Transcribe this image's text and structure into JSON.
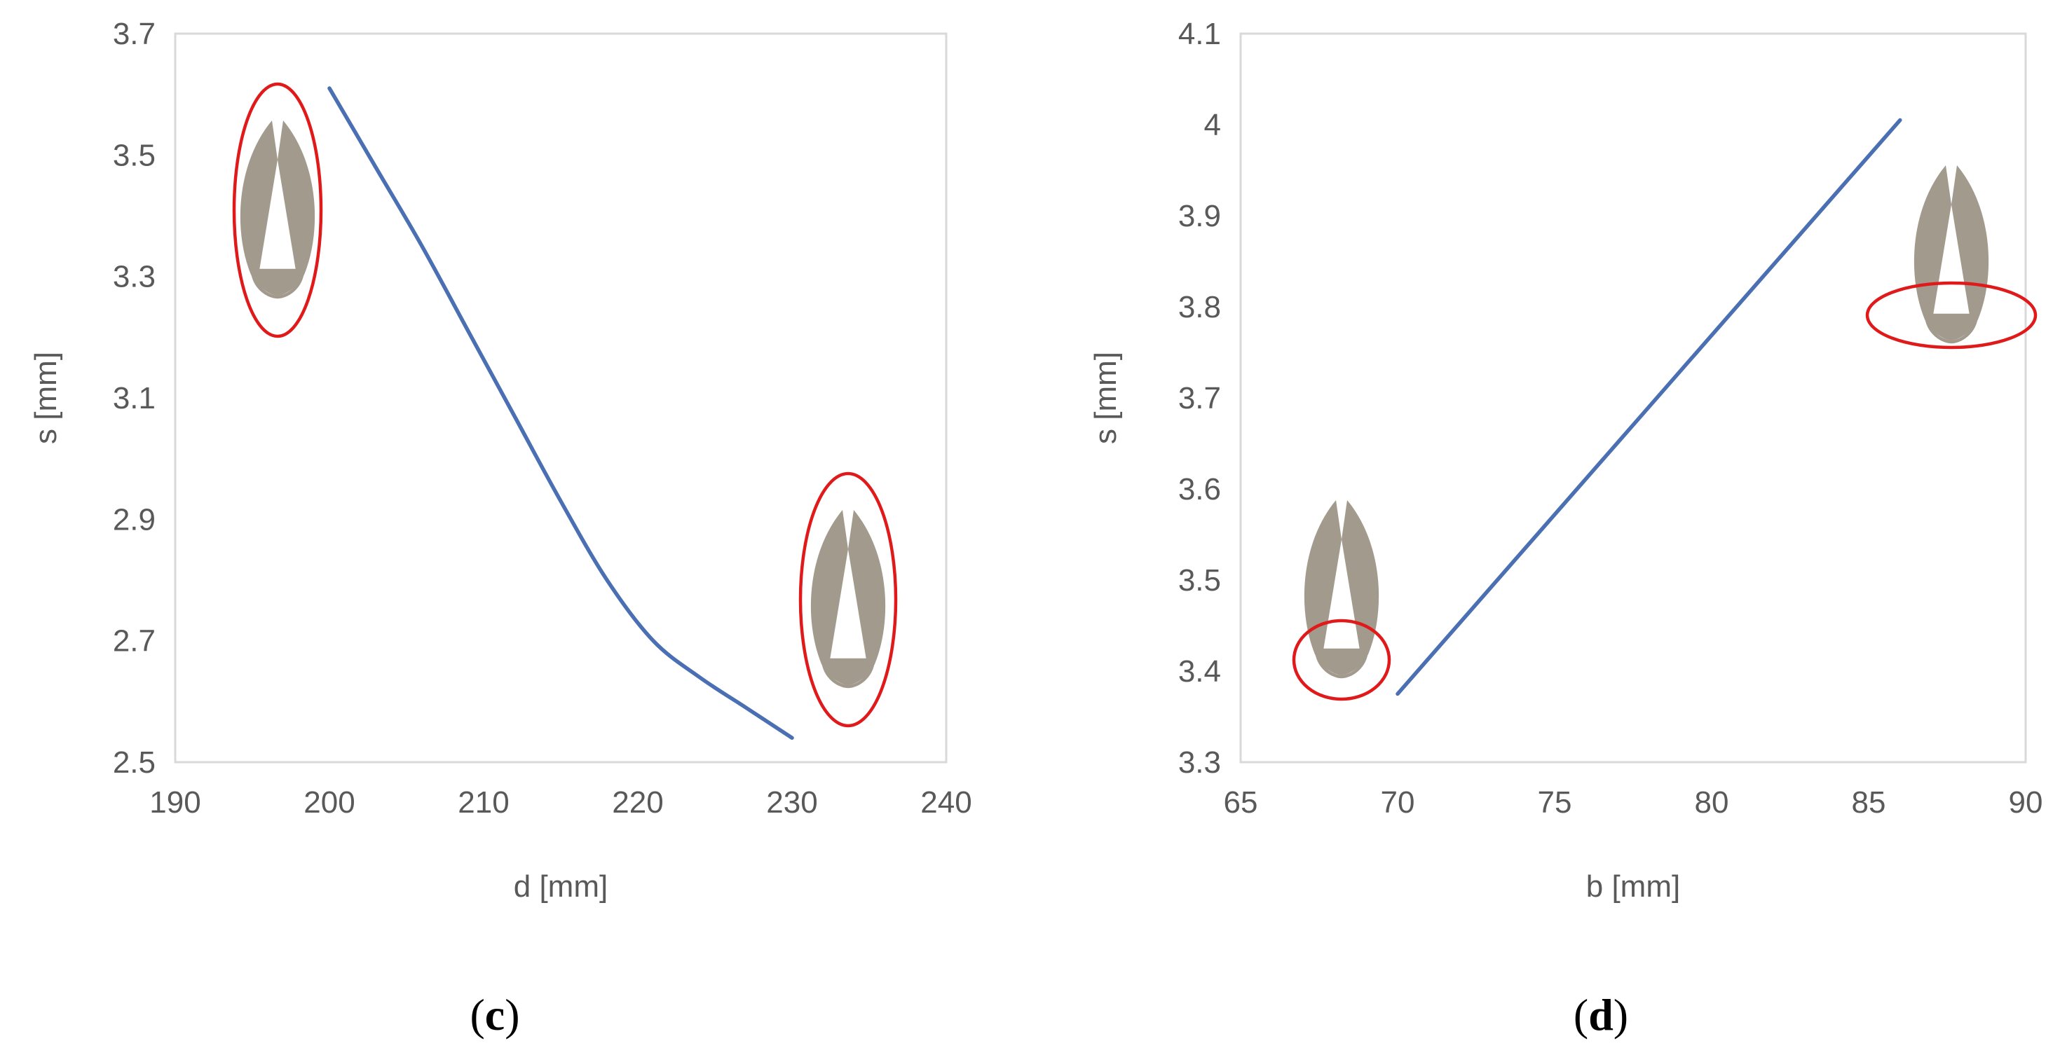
{
  "chart_data": [
    {
      "type": "line",
      "panel_label": "c",
      "xlabel": "d [mm]",
      "ylabel": "s [mm]",
      "xlim": [
        190,
        240
      ],
      "ylim": [
        2.5,
        3.7
      ],
      "xticks": [
        190,
        200,
        210,
        220,
        230,
        240
      ],
      "yticks": [
        2.5,
        2.7,
        2.9,
        3.1,
        3.3,
        3.5,
        3.7
      ],
      "ytick_labels": [
        "2.5",
        "2.7",
        "2.9",
        "3.1",
        "3.3",
        "3.5",
        "3.7"
      ],
      "grid": false,
      "series": [
        {
          "name": "s",
          "x": [
            200,
            203,
            206,
            209,
            212,
            215,
            218,
            221,
            224,
            227,
            230
          ],
          "y": [
            3.61,
            3.48,
            3.35,
            3.21,
            3.07,
            2.93,
            2.8,
            2.7,
            2.64,
            2.59,
            2.54
          ]
        }
      ],
      "annotations": [
        {
          "kind": "cross-section-icon",
          "near": "d=200 (upper-left)",
          "highlight": "whole-shape"
        },
        {
          "kind": "cross-section-icon",
          "near": "d=230 (lower-right)",
          "highlight": "whole-shape"
        }
      ]
    },
    {
      "type": "line",
      "panel_label": "d",
      "xlabel": "b [mm]",
      "ylabel": "s [mm]",
      "xlim": [
        65,
        90
      ],
      "ylim": [
        3.3,
        4.1
      ],
      "xticks": [
        65,
        70,
        75,
        80,
        85,
        90
      ],
      "yticks": [
        3.3,
        3.4,
        3.5,
        3.6,
        3.7,
        3.8,
        3.9,
        4.0,
        4.1
      ],
      "ytick_labels": [
        "3.3",
        "3.4",
        "3.5",
        "3.6",
        "3.7",
        "3.8",
        "3.9",
        "4",
        "4.1"
      ],
      "grid": false,
      "series": [
        {
          "name": "s",
          "x": [
            70,
            86
          ],
          "y": [
            3.375,
            4.005
          ]
        }
      ],
      "annotations": [
        {
          "kind": "cross-section-icon",
          "near": "b=68 (lower-left)",
          "highlight": "base"
        },
        {
          "kind": "cross-section-icon",
          "near": "b=87 (upper-right)",
          "highlight": "base"
        }
      ]
    }
  ],
  "colors": {
    "series": "#4a6fb3",
    "axis_text": "#595959",
    "frame": "#d9d9d9",
    "shape": "#a29a8c",
    "highlight": "#e01a1a"
  },
  "icons": [
    "cross-section-icon"
  ]
}
